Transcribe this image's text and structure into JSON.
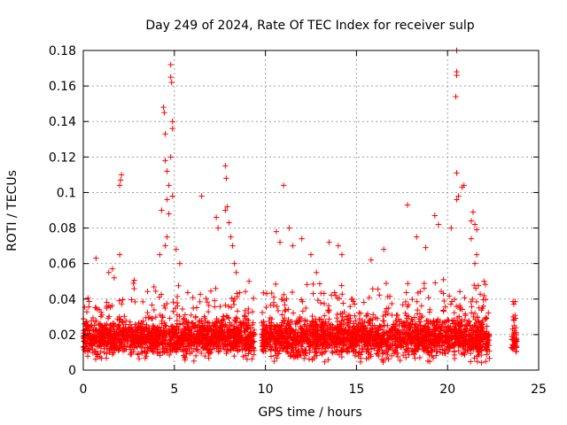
{
  "chart_data": {
    "type": "scatter",
    "title": "Day 249 of 2024, Rate Of TEC Index for receiver sulp",
    "xlabel": "GPS time / hours",
    "ylabel": "ROTI / TECUs",
    "xlim": [
      0,
      25
    ],
    "ylim": [
      0,
      0.18
    ],
    "xticks": [
      0,
      5,
      10,
      15,
      20,
      25
    ],
    "yticks": [
      0,
      0.02,
      0.04,
      0.06,
      0.08,
      0.1,
      0.12,
      0.14,
      0.16,
      0.18
    ],
    "xtick_labels": [
      "0",
      "5",
      "10",
      "15",
      "20",
      "25"
    ],
    "ytick_labels": [
      "0",
      "0.02",
      "0.04",
      "0.06",
      "0.08",
      "0.1",
      "0.12",
      "0.14",
      "0.16",
      "0.18"
    ],
    "grid": true,
    "marker": "plus",
    "marker_color": "#ff0000",
    "observed_segments": [
      {
        "start": 0.0,
        "end": 9.4,
        "baseline": 0.018,
        "spread": 0.01
      },
      {
        "start": 9.8,
        "end": 22.3,
        "baseline": 0.018,
        "spread": 0.011
      },
      {
        "start": 23.5,
        "end": 23.8,
        "baseline": 0.015,
        "spread": 0.008
      }
    ],
    "series": [
      {
        "name": "sulp",
        "points": [
          [
            0.7,
            0.063
          ],
          [
            1.4,
            0.055
          ],
          [
            1.6,
            0.057
          ],
          [
            1.7,
            0.052
          ],
          [
            2.0,
            0.104
          ],
          [
            2.05,
            0.107
          ],
          [
            2.1,
            0.11
          ],
          [
            2.0,
            0.065
          ],
          [
            4.4,
            0.148
          ],
          [
            4.45,
            0.145
          ],
          [
            4.5,
            0.133
          ],
          [
            4.5,
            0.118
          ],
          [
            4.6,
            0.112
          ],
          [
            4.7,
            0.104
          ],
          [
            4.6,
            0.096
          ],
          [
            4.8,
            0.172
          ],
          [
            4.8,
            0.165
          ],
          [
            4.85,
            0.162
          ],
          [
            4.9,
            0.14
          ],
          [
            4.9,
            0.136
          ],
          [
            4.8,
            0.12
          ],
          [
            4.9,
            0.098
          ],
          [
            4.7,
            0.088
          ],
          [
            4.6,
            0.075
          ],
          [
            4.5,
            0.07
          ],
          [
            5.1,
            0.068
          ],
          [
            6.5,
            0.098
          ],
          [
            7.3,
            0.086
          ],
          [
            7.4,
            0.08
          ],
          [
            7.8,
            0.115
          ],
          [
            7.85,
            0.108
          ],
          [
            7.9,
            0.092
          ],
          [
            7.8,
            0.09
          ],
          [
            8.0,
            0.083
          ],
          [
            8.1,
            0.075
          ],
          [
            8.2,
            0.07
          ],
          [
            8.3,
            0.06
          ],
          [
            8.4,
            0.055
          ],
          [
            11.0,
            0.104
          ],
          [
            10.6,
            0.078
          ],
          [
            10.8,
            0.072
          ],
          [
            11.3,
            0.08
          ],
          [
            11.5,
            0.07
          ],
          [
            12.0,
            0.074
          ],
          [
            12.5,
            0.065
          ],
          [
            13.5,
            0.072
          ],
          [
            14.0,
            0.07
          ],
          [
            14.2,
            0.065
          ],
          [
            15.8,
            0.062
          ],
          [
            16.5,
            0.068
          ],
          [
            17.8,
            0.093
          ],
          [
            18.3,
            0.075
          ],
          [
            18.8,
            0.069
          ],
          [
            19.3,
            0.087
          ],
          [
            19.5,
            0.082
          ],
          [
            20.2,
            0.08
          ],
          [
            20.5,
            0.18
          ],
          [
            20.5,
            0.168
          ],
          [
            20.5,
            0.166
          ],
          [
            20.45,
            0.154
          ],
          [
            20.5,
            0.111
          ],
          [
            20.5,
            0.096
          ],
          [
            20.6,
            0.098
          ],
          [
            20.8,
            0.103
          ],
          [
            20.9,
            0.104
          ],
          [
            21.3,
            0.084
          ],
          [
            21.4,
            0.089
          ],
          [
            21.5,
            0.082
          ],
          [
            21.6,
            0.079
          ],
          [
            21.3,
            0.074
          ],
          [
            21.6,
            0.065
          ],
          [
            21.5,
            0.06
          ],
          [
            22.0,
            0.05
          ],
          [
            23.6,
            0.03
          ],
          [
            23.65,
            0.028
          ],
          [
            4.3,
            0.09
          ],
          [
            4.2,
            0.065
          ],
          [
            5.3,
            0.06
          ],
          [
            9.1,
            0.05
          ],
          [
            12.8,
            0.055
          ]
        ]
      }
    ]
  }
}
